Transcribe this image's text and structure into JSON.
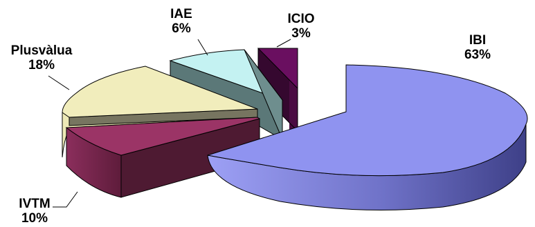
{
  "chart_data": {
    "type": "pie",
    "style": "3d-exploded",
    "slices": [
      {
        "name": "IBI",
        "value": 63,
        "label": "63%",
        "color": "#8F93F0",
        "side_color": "#4A4DA0"
      },
      {
        "name": "IVTM",
        "value": 10,
        "label": "10%",
        "color": "#9B3466",
        "side_color": "#4E1A32"
      },
      {
        "name": "Plusvàlua",
        "value": 18,
        "label": "18%",
        "color": "#F1EDBC",
        "side_color": "#777560"
      },
      {
        "name": "IAE",
        "value": 6,
        "label": "6%",
        "color": "#C4F2F2",
        "side_color": "#5B7878"
      },
      {
        "name": "ICIO",
        "value": 3,
        "label": "3%",
        "color": "#6A0F60",
        "side_color": "#35082F"
      }
    ],
    "legend": "none",
    "data_labels": "outside with leader lines"
  }
}
